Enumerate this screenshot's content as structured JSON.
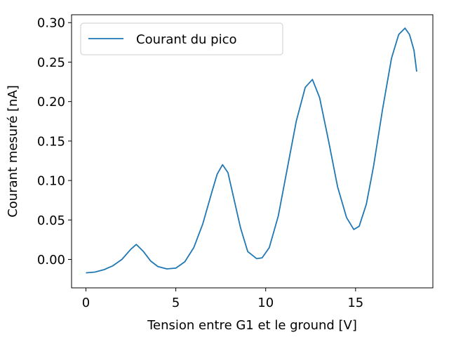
{
  "chart_data": {
    "type": "line",
    "title": "",
    "xlabel": "Tension entre G1 et le ground [V]",
    "ylabel": "Courant mesuré [nA]",
    "xlim": [
      -0.8,
      19.3
    ],
    "ylim": [
      -0.036,
      0.31
    ],
    "xticks": [
      0,
      5,
      10,
      15
    ],
    "yticks": [
      0.0,
      0.05,
      0.1,
      0.15,
      0.2,
      0.25,
      0.3
    ],
    "ytick_labels": [
      "0.00",
      "0.05",
      "0.10",
      "0.15",
      "0.20",
      "0.25",
      "0.30"
    ],
    "grid": false,
    "legend": {
      "position": "top-left",
      "entries": [
        "Courant du pico"
      ]
    },
    "series": [
      {
        "name": "Courant du pico",
        "color": "#1f77b4",
        "x": [
          0.0,
          0.5,
          1.0,
          1.5,
          2.0,
          2.5,
          2.8,
          3.2,
          3.6,
          4.0,
          4.5,
          5.0,
          5.5,
          6.0,
          6.5,
          7.0,
          7.3,
          7.6,
          7.9,
          8.2,
          8.6,
          9.0,
          9.5,
          9.8,
          10.2,
          10.7,
          11.2,
          11.7,
          12.2,
          12.6,
          13.0,
          13.5,
          14.0,
          14.5,
          14.9,
          15.2,
          15.6,
          16.0,
          16.5,
          17.0,
          17.4,
          17.75,
          18.0,
          18.25,
          18.4
        ],
        "y": [
          -0.017,
          -0.016,
          -0.013,
          -0.008,
          0.0,
          0.013,
          0.019,
          0.01,
          -0.002,
          -0.009,
          -0.012,
          -0.011,
          -0.003,
          0.015,
          0.045,
          0.085,
          0.108,
          0.12,
          0.11,
          0.08,
          0.04,
          0.01,
          0.001,
          0.002,
          0.015,
          0.055,
          0.115,
          0.175,
          0.218,
          0.228,
          0.205,
          0.15,
          0.092,
          0.053,
          0.038,
          0.042,
          0.07,
          0.118,
          0.19,
          0.255,
          0.285,
          0.293,
          0.285,
          0.265,
          0.238
        ]
      }
    ]
  }
}
